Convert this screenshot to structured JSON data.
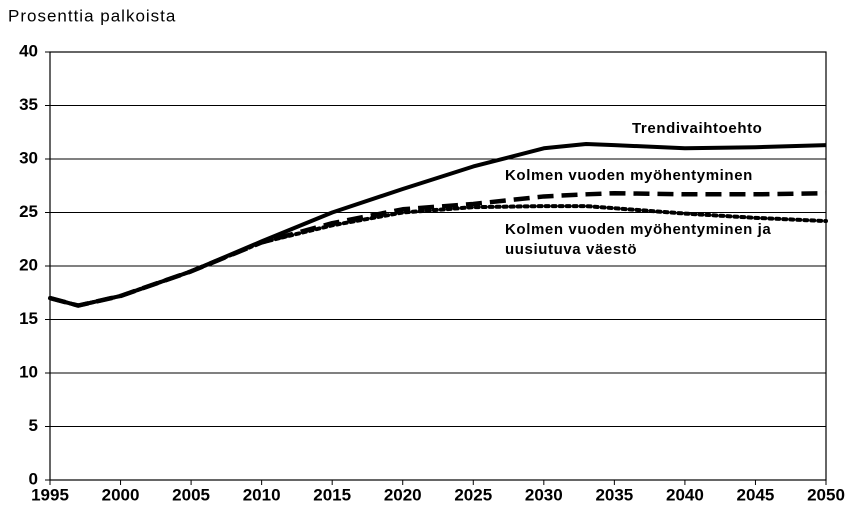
{
  "chart_data": {
    "type": "line",
    "ylabel": "Prosenttia palkoista",
    "x": [
      1995,
      1997,
      2000,
      2005,
      2010,
      2015,
      2020,
      2025,
      2030,
      2033,
      2035,
      2040,
      2045,
      2050
    ],
    "series": [
      {
        "name": "Trendivaihtoehto",
        "color": "#000000",
        "style": "solid",
        "values": [
          17,
          16.3,
          17.2,
          19.5,
          22.3,
          25,
          27.2,
          29.3,
          31,
          31.4,
          31.3,
          31,
          31.1,
          31.3
        ]
      },
      {
        "name": "Kolmen vuoden myöhentyminen",
        "color": "#000000",
        "style": "dashed",
        "values": [
          17,
          16.3,
          17.2,
          19.5,
          22.2,
          24,
          25.3,
          25.8,
          26.5,
          26.7,
          26.8,
          26.7,
          26.7,
          26.8
        ]
      },
      {
        "name": "Kolmen vuoden myöhentyminen ja uusiutuva väestö",
        "color": "#000000",
        "style": "dotted",
        "values": [
          17,
          16.3,
          17.2,
          19.5,
          22.2,
          23.8,
          25,
          25.5,
          25.6,
          25.6,
          25.4,
          24.9,
          24.5,
          24.2
        ]
      }
    ],
    "xlim": [
      1995,
      2050
    ],
    "xticks": [
      1995,
      2000,
      2005,
      2010,
      2015,
      2020,
      2025,
      2030,
      2035,
      2040,
      2045,
      2050
    ],
    "ylim": [
      0,
      40
    ],
    "yticks": [
      0,
      5,
      10,
      15,
      20,
      25,
      30,
      35,
      40
    ],
    "grid": true
  }
}
